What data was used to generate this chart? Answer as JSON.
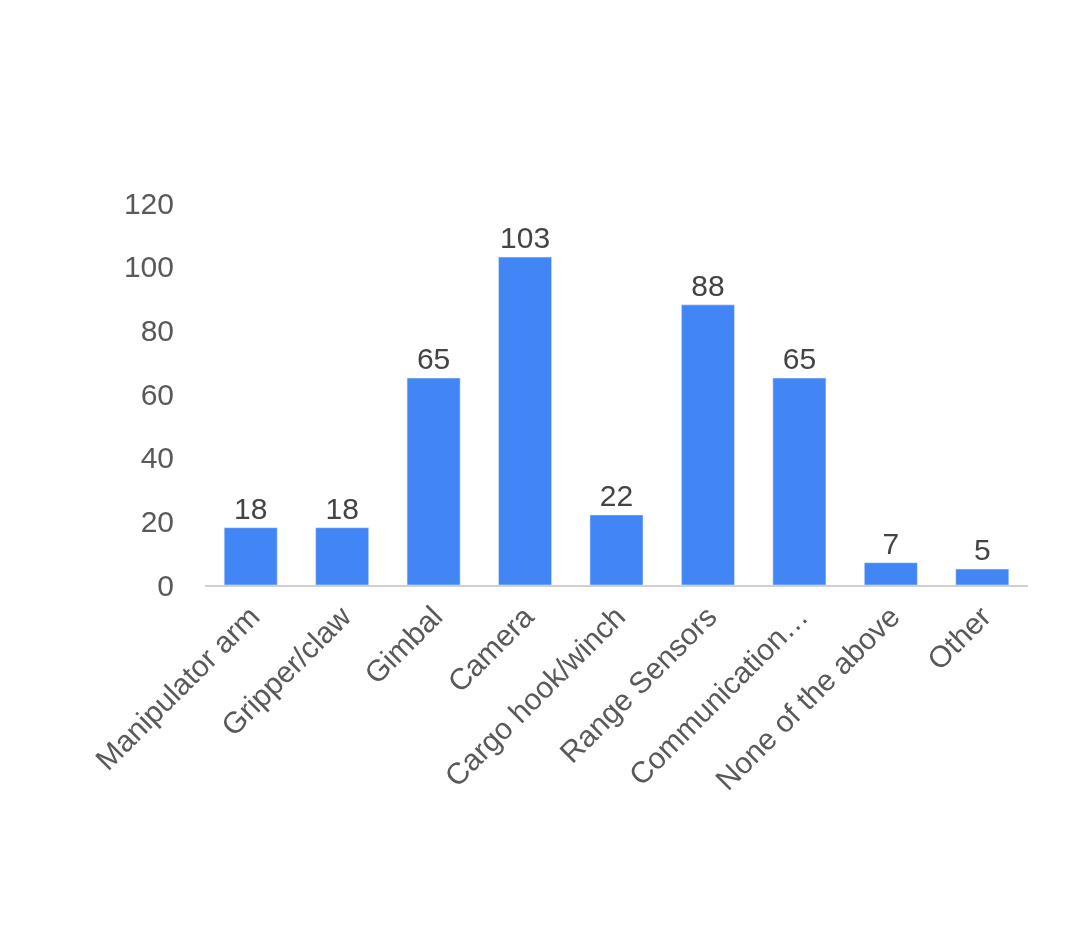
{
  "chart_data": {
    "type": "bar",
    "categories": [
      "Manipulator arm",
      "Gripper/claw",
      "Gimbal",
      "Camera",
      "Cargo hook/winch",
      "Range Sensors",
      "Communication…",
      "None of the above",
      "Other"
    ],
    "values": [
      18,
      18,
      65,
      103,
      22,
      88,
      65,
      7,
      5
    ],
    "color": "#4285f4",
    "ylim": [
      0,
      120
    ],
    "yticks": [
      0,
      20,
      40,
      60,
      80,
      100,
      120
    ],
    "legend": false,
    "data_labels": true
  }
}
